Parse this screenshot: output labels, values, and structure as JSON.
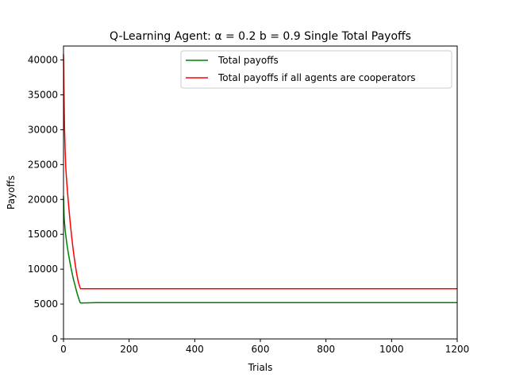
{
  "chart_data": {
    "type": "line",
    "title": "Q-Learning Agent: α = 0.2 b = 0.9 Single Total Payoffs",
    "xlabel": "Trials",
    "ylabel": "Payoffs",
    "xlim": [
      0,
      1200
    ],
    "ylim": [
      0,
      42000
    ],
    "xticks": [
      0,
      200,
      400,
      600,
      800,
      1000,
      1200
    ],
    "yticks": [
      0,
      5000,
      10000,
      15000,
      20000,
      25000,
      30000,
      35000,
      40000
    ],
    "xtick_labels": [
      "0",
      "200",
      "400",
      "600",
      "800",
      "1000",
      "1200"
    ],
    "ytick_labels": [
      "0",
      "5000",
      "10000",
      "15000",
      "20000",
      "25000",
      "30000",
      "35000",
      "40000"
    ],
    "grid": false,
    "legend_position": "top-right",
    "series": [
      {
        "name": "Total payoffs",
        "color": "#008000",
        "x": [
          0,
          2,
          5,
          10,
          15,
          20,
          25,
          30,
          35,
          40,
          45,
          50,
          52,
          100,
          200,
          400,
          600,
          800,
          1000,
          1200
        ],
        "y": [
          20500,
          17300,
          15600,
          13700,
          12200,
          10900,
          9700,
          8600,
          7700,
          6800,
          6000,
          5300,
          5150,
          5200,
          5200,
          5200,
          5200,
          5200,
          5200,
          5200
        ]
      },
      {
        "name": "Total payoffs if all agents are cooperators",
        "color": "#ff0000",
        "x": [
          0,
          1,
          2,
          3,
          5,
          7,
          10,
          15,
          20,
          25,
          30,
          35,
          40,
          45,
          50,
          52,
          100,
          200,
          400,
          600,
          800,
          1000,
          1200
        ],
        "y": [
          40800,
          37500,
          33500,
          30500,
          27000,
          24500,
          22400,
          19500,
          16900,
          14600,
          12600,
          10900,
          9400,
          8200,
          7400,
          7200,
          7200,
          7200,
          7200,
          7200,
          7200,
          7200,
          7200
        ]
      }
    ]
  }
}
